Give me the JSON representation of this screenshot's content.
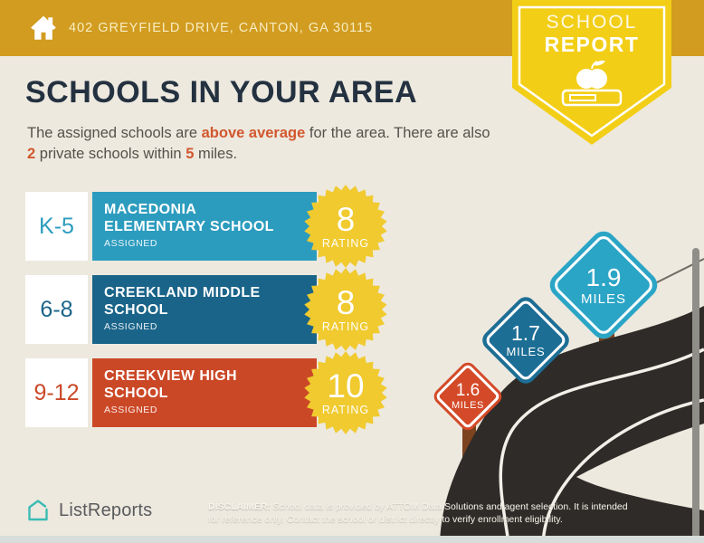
{
  "header": {
    "address": "402 GREYFIELD DRIVE, CANTON, GA 30115",
    "badge": {
      "line1": "SCHOOL",
      "line2": "REPORT"
    }
  },
  "title": "SCHOOLS IN YOUR AREA",
  "intro": {
    "seg1": "The assigned schools are ",
    "hl1": "above average",
    "seg2": " for the area. There are also ",
    "hl2": "2",
    "seg3": " private schools within ",
    "hl3": "5",
    "seg4": " miles."
  },
  "schools": [
    {
      "grade": "K-5",
      "name": "MACEDONIA ELEMENTARY SCHOOL",
      "tag": "ASSIGNED",
      "rating": "8",
      "rating_label": "RATING",
      "color": "#2C9CBE"
    },
    {
      "grade": "6-8",
      "name": "CREEKLAND MIDDLE SCHOOL",
      "tag": "ASSIGNED",
      "rating": "8",
      "rating_label": "RATING",
      "color": "#1A6489"
    },
    {
      "grade": "9-12",
      "name": "CREEKVIEW HIGH SCHOOL",
      "tag": "ASSIGNED",
      "rating": "10",
      "rating_label": "RATING",
      "color": "#CB4827"
    }
  ],
  "signs": [
    {
      "distance": "1.6",
      "unit": "MILES",
      "color": "#D44A28"
    },
    {
      "distance": "1.7",
      "unit": "MILES",
      "color": "#1D6E95"
    },
    {
      "distance": "1.9",
      "unit": "MILES",
      "color": "#2BA5C6"
    }
  ],
  "footer": {
    "brand": "ListReports",
    "disclaimer_label": "DISCLAIMER:",
    "disclaimer_line1": " School data is provided by ATTOM Data Solutions and agent selection. It is intended",
    "disclaimer_line2": "for reference only. Contact the school or district directly to verify enrollment eligibility."
  },
  "colors": {
    "header_bg": "#D19C20",
    "badge_yellow": "#F3CE17",
    "background": "#EDE9DF",
    "heading": "#243140",
    "accent_orange": "#D2572E",
    "rating_yellow": "#F0CA2F",
    "road": "#2E2B28",
    "post_brown": "#7C431F",
    "brand_teal": "#3CBCB4"
  }
}
